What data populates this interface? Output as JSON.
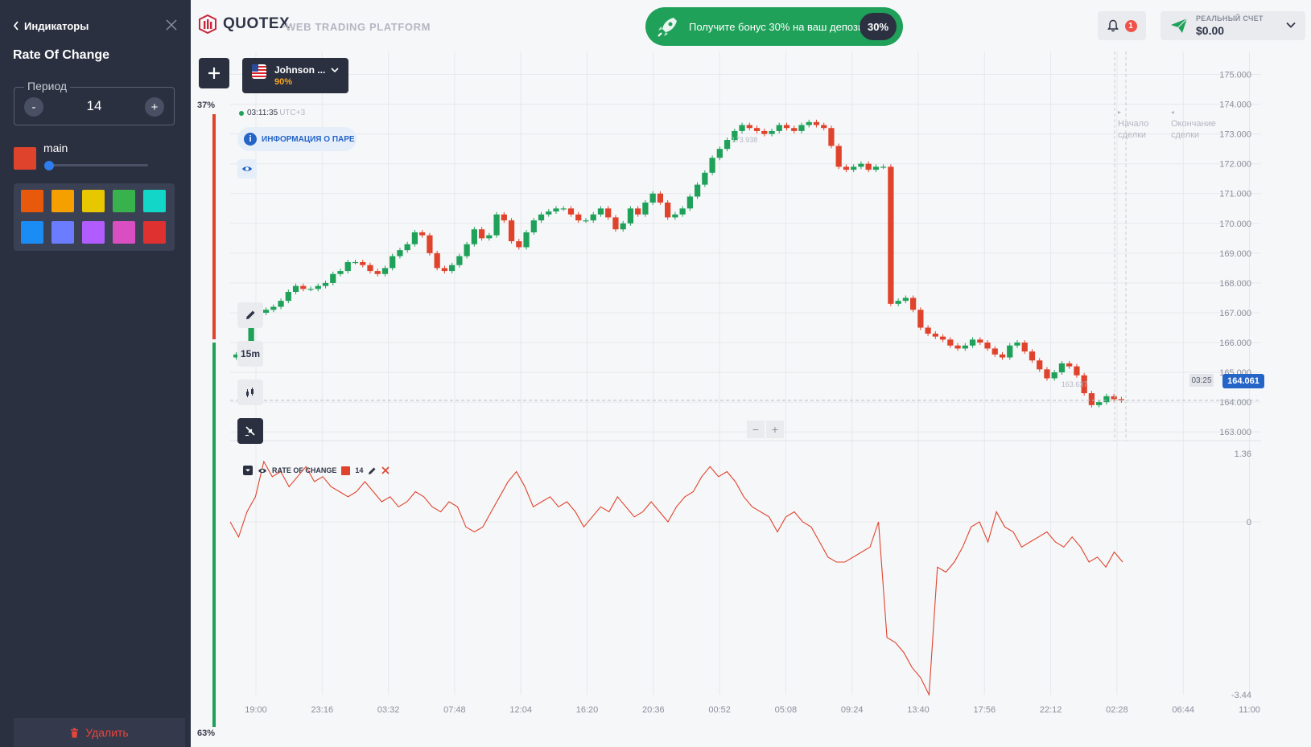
{
  "sidebar": {
    "back_label": "Индикаторы",
    "indicator_title": "Rate Of Change",
    "period_label": "Период",
    "period_value": "14",
    "minus_label": "-",
    "plus_label": "+",
    "series_name": "main",
    "series_color": "#e0432c",
    "palette": [
      "#e8590c",
      "#f59f00",
      "#e6c700",
      "#37b24d",
      "#12d6c8",
      "#1c8cf5",
      "#6b7cff",
      "#b05cff",
      "#d94fc2",
      "#e03131"
    ],
    "delete_label": "Удалить"
  },
  "topbar": {
    "brand": "QUOTEX",
    "subtitle": "WEB TRADING PLATFORM",
    "bonus_text": "Получите бонус 30% на ваш депозит",
    "bonus_pct": "30%",
    "notif_count": "1",
    "account_label": "РЕАЛЬНЫЙ СЧЕТ",
    "account_value": "$0.00"
  },
  "asset": {
    "name": "Johnson ...",
    "payout": "90%"
  },
  "sentiment": {
    "up_pct": "37%",
    "down_pct": "63%",
    "up_fraction": 0.37
  },
  "clock": {
    "time": "03:11:35",
    "tz": "UTC+3"
  },
  "info_label": "ИНФОРМАЦИЯ О ПАРЕ",
  "timeframe": "15m",
  "deal": {
    "start": [
      "Начало",
      "сделки"
    ],
    "end": [
      "Окончание",
      "сделки"
    ],
    "timer": "03:25"
  },
  "price": {
    "current": "164.061",
    "high_label": "173.938",
    "low_label": "163.637"
  },
  "price_axis": [
    "175.000",
    "174.000",
    "173.000",
    "172.000",
    "171.000",
    "170.000",
    "169.000",
    "168.000",
    "167.000",
    "166.000",
    "165.000",
    "164.000",
    "163.000"
  ],
  "time_axis": [
    "19:00",
    "23:16",
    "03:32",
    "07:48",
    "12:04",
    "16:20",
    "20:36",
    "00:52",
    "05:08",
    "09:24",
    "13:40",
    "17:56",
    "22:12",
    "02:28",
    "06:44",
    "11:00"
  ],
  "indicator": {
    "name": "RATE OF CHANGE",
    "period": "14",
    "axis": [
      "1.36",
      "0",
      "-3.44"
    ]
  },
  "chart_data": [
    {
      "type": "candlestick",
      "title": "",
      "ylim": [
        162.6,
        175.5
      ],
      "close": [
        165.6,
        165.7,
        166.9,
        167.0,
        167.1,
        167.2,
        167.4,
        167.7,
        167.9,
        167.8,
        167.8,
        167.9,
        168.0,
        168.3,
        168.4,
        168.7,
        168.7,
        168.6,
        168.4,
        168.3,
        168.5,
        168.9,
        169.1,
        169.3,
        169.7,
        169.6,
        169.0,
        168.5,
        168.4,
        168.6,
        168.9,
        169.3,
        169.8,
        169.5,
        169.6,
        170.3,
        170.1,
        169.4,
        169.2,
        169.7,
        170.1,
        170.3,
        170.4,
        170.5,
        170.5,
        170.3,
        170.1,
        170.1,
        170.3,
        170.5,
        170.2,
        169.8,
        170.0,
        170.5,
        170.3,
        170.7,
        171.0,
        170.7,
        170.2,
        170.3,
        170.5,
        170.9,
        171.3,
        171.7,
        172.2,
        172.5,
        172.8,
        173.1,
        173.3,
        173.2,
        173.1,
        173.0,
        173.1,
        173.3,
        173.2,
        173.1,
        173.3,
        173.4,
        173.3,
        173.2,
        172.6,
        171.9,
        171.8,
        171.9,
        172.0,
        171.8,
        171.9,
        171.9,
        167.3,
        167.4,
        167.5,
        167.1,
        166.5,
        166.3,
        166.2,
        166.1,
        165.9,
        165.8,
        165.9,
        166.1,
        166.0,
        165.8,
        165.6,
        165.5,
        165.9,
        166.0,
        165.7,
        165.4,
        165.1,
        164.8,
        165.0,
        165.3,
        165.2,
        164.9,
        164.3,
        163.9,
        164.0,
        164.2,
        164.1,
        164.06
      ]
    },
    {
      "type": "line",
      "name": "RATE OF CHANGE",
      "ylim": [
        -3.44,
        1.36
      ],
      "values": [
        0.0,
        -0.3,
        0.2,
        0.5,
        1.2,
        0.9,
        1.0,
        0.7,
        0.9,
        1.1,
        0.8,
        0.9,
        0.7,
        0.6,
        0.5,
        0.6,
        0.8,
        0.6,
        0.4,
        0.5,
        0.3,
        0.4,
        0.6,
        0.5,
        0.3,
        0.2,
        0.4,
        0.3,
        -0.1,
        -0.2,
        -0.1,
        0.2,
        0.5,
        0.8,
        1.0,
        0.7,
        0.3,
        0.4,
        0.5,
        0.3,
        0.4,
        0.2,
        -0.1,
        0.1,
        0.3,
        0.2,
        0.5,
        0.3,
        0.1,
        0.2,
        0.4,
        0.2,
        0.0,
        0.3,
        0.5,
        0.6,
        0.9,
        1.1,
        0.9,
        1.0,
        0.8,
        0.5,
        0.3,
        0.2,
        0.1,
        -0.2,
        0.1,
        0.2,
        0.0,
        -0.1,
        -0.4,
        -0.7,
        -0.8,
        -0.8,
        -0.7,
        -0.6,
        -0.5,
        0.0,
        -2.3,
        -2.4,
        -2.6,
        -2.9,
        -3.1,
        -3.44,
        -0.9,
        -1.0,
        -0.8,
        -0.5,
        -0.1,
        0.0,
        -0.4,
        0.2,
        -0.1,
        -0.2,
        -0.5,
        -0.4,
        -0.3,
        -0.2,
        -0.4,
        -0.5,
        -0.3,
        -0.5,
        -0.8,
        -0.7,
        -0.9,
        -0.6,
        -0.8
      ]
    }
  ]
}
